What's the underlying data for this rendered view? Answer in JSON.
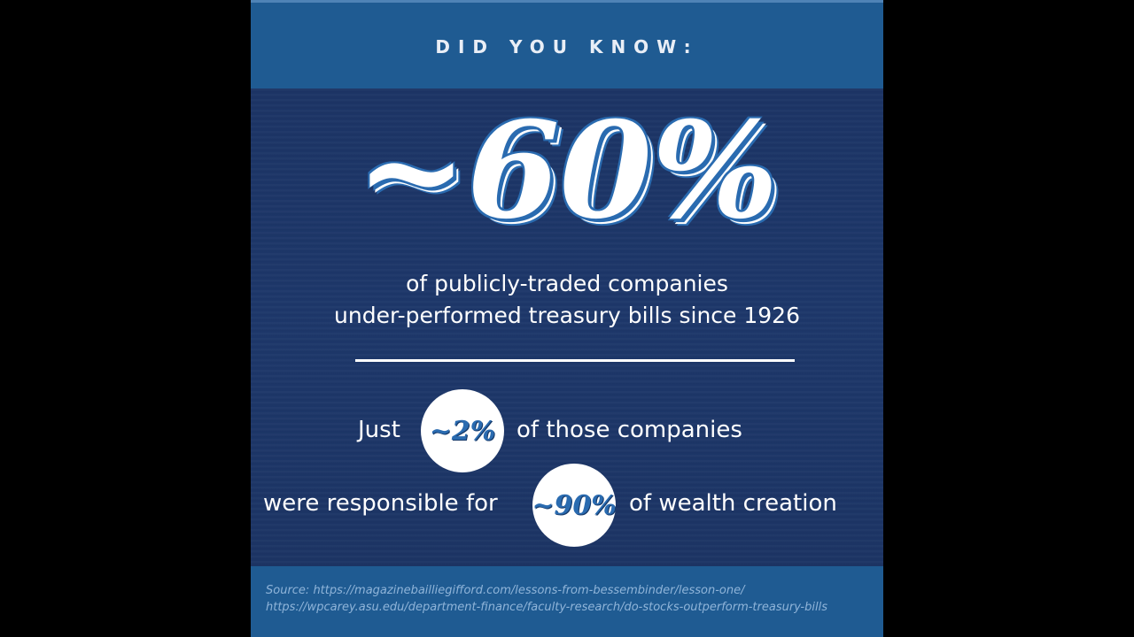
{
  "header": {
    "kicker": "DID YOU KNOW:"
  },
  "stat": {
    "value": "~60%",
    "caption_line1": "of publicly-traded companies",
    "caption_line2": "under-performed treasury bills since 1926"
  },
  "row1": {
    "pre": "Just",
    "highlight": "~2%",
    "post": "of those companies"
  },
  "row2": {
    "pre": "were responsible for",
    "highlight": "~90%",
    "post": "of wealth creation"
  },
  "source": {
    "line1": "Source: https://magazinebailliegifford.com/lessons-from-bessembinder/lesson-one/",
    "line2": "https://wpcarey.asu.edu/department-finance/faculty-research/do-stocks-outperform-treasury-bills"
  },
  "colors": {
    "dark_navy": "#1c3566",
    "band_blue": "#1f5b92",
    "accent_blue": "#2a6bb0",
    "text_white": "#ffffff",
    "source_text": "#8fb4d9"
  }
}
